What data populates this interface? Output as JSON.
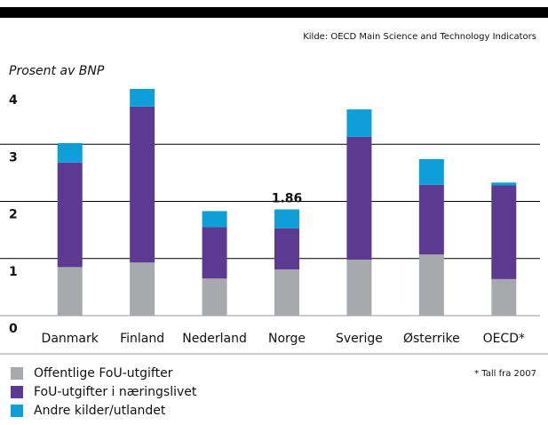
{
  "chart_data": {
    "type": "stacked_bar",
    "source": "Kilde: OECD Main Science and Technology Indicators",
    "ylabel": "Prosent av BNP",
    "note": "* Tall fra 2007",
    "categories": [
      "Danmark",
      "Finland",
      "Nederland",
      "Norge",
      "Sverige",
      "Østerrike",
      "OECD*"
    ],
    "series": [
      {
        "name": "Offentlige FoU-utgifter",
        "color": "#a7a9ac",
        "values": [
          0.85,
          0.93,
          0.65,
          0.81,
          0.98,
          1.07,
          0.64
        ]
      },
      {
        "name": "FoU-utgifter i næringslivet",
        "color": "#5c3a91",
        "values": [
          1.83,
          2.73,
          0.9,
          0.72,
          2.15,
          1.22,
          1.64
        ]
      },
      {
        "name": "Andre kilder/utlandet",
        "color": "#0e9fd8",
        "values": [
          0.34,
          0.31,
          0.28,
          0.33,
          0.48,
          0.45,
          0.05
        ]
      }
    ],
    "annotations": [
      {
        "label": "1.86",
        "value": 1.86,
        "category": "Norge"
      }
    ],
    "ylim": [
      0,
      4
    ],
    "yticks": [
      0,
      1,
      2,
      3,
      4
    ],
    "grid": true
  }
}
